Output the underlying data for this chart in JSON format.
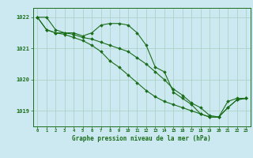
{
  "title": "Graphe pression niveau de la mer (hPa)",
  "xlabel_hours": [
    0,
    1,
    2,
    3,
    4,
    5,
    6,
    7,
    8,
    9,
    10,
    11,
    12,
    13,
    14,
    15,
    16,
    17,
    18,
    19,
    20,
    21,
    22,
    23
  ],
  "line1": [
    1022.0,
    1022.0,
    1021.6,
    1021.5,
    1021.5,
    1021.4,
    1021.5,
    1021.75,
    1021.8,
    1021.8,
    1021.75,
    1021.5,
    1021.1,
    1020.4,
    1020.25,
    1019.6,
    1019.4,
    1019.2,
    1018.9,
    1018.8,
    1018.8,
    1019.3,
    1019.4,
    1019.4
  ],
  "line2": [
    1022.0,
    1021.6,
    1021.5,
    1021.5,
    1021.45,
    1021.35,
    1021.3,
    1021.2,
    1021.1,
    1021.0,
    1020.9,
    1020.7,
    1020.5,
    1020.25,
    1020.0,
    1019.7,
    1019.5,
    1019.25,
    1019.1,
    1018.85,
    1018.8,
    1019.1,
    1019.35,
    1019.4
  ],
  "line3": [
    1022.0,
    1021.6,
    1021.5,
    1021.45,
    1021.35,
    1021.25,
    1021.1,
    1020.9,
    1020.6,
    1020.4,
    1020.15,
    1019.9,
    1019.65,
    1019.45,
    1019.3,
    1019.2,
    1019.1,
    1019.0,
    1018.9,
    1018.8,
    1018.8,
    1019.1,
    1019.35,
    1019.4
  ],
  "line_color": "#1a6e1a",
  "bg_color": "#cce8f0",
  "grid_color": "#a8cfc0",
  "axis_color": "#1a6e1a",
  "text_color": "#1a6e1a",
  "ylim": [
    1018.5,
    1022.3
  ],
  "yticks": [
    1019,
    1020,
    1021,
    1022
  ],
  "marker": "D",
  "marker_size": 1.8,
  "linewidth": 0.8
}
